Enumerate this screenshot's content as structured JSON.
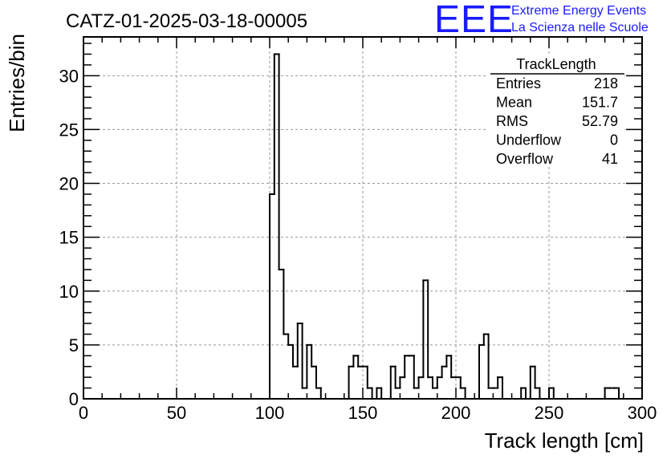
{
  "header": {
    "title": "CATZ-01-2025-03-18-00005",
    "logo_text": "EEE",
    "brand_line1": "Extreme Energy Events",
    "brand_line2": "La Scienza nelle Scuole",
    "brand_color": "#1a1aff"
  },
  "stats_box": {
    "title": "TrackLength",
    "rows": [
      {
        "label": "Entries",
        "value": "218"
      },
      {
        "label": "Mean",
        "value": "151.7"
      },
      {
        "label": "RMS",
        "value": "52.79"
      },
      {
        "label": "Underflow",
        "value": "0"
      },
      {
        "label": "Overflow",
        "value": "41"
      }
    ]
  },
  "chart_data": {
    "type": "bar",
    "style": "step-histogram",
    "title": "CATZ-01-2025-03-18-00005",
    "xlabel": "Track length [cm]",
    "ylabel": "Entries/bin",
    "xlim": [
      0,
      300
    ],
    "ylim": [
      0,
      33.6
    ],
    "grid": true,
    "line_color": "#000000",
    "bin_width": 2.5,
    "x_ticks": [
      0,
      50,
      100,
      150,
      200,
      250,
      300
    ],
    "y_ticks": [
      0,
      5,
      10,
      15,
      20,
      25,
      30
    ],
    "bin_low_edges": [
      100,
      102.5,
      105,
      107.5,
      110,
      112.5,
      115,
      117.5,
      120,
      122.5,
      125,
      127.5,
      130,
      132.5,
      135,
      137.5,
      140,
      142.5,
      145,
      147.5,
      150,
      152.5,
      155,
      157.5,
      160,
      162.5,
      165,
      167.5,
      170,
      172.5,
      175,
      177.5,
      180,
      182.5,
      185,
      187.5,
      190,
      192.5,
      195,
      197.5,
      200,
      202.5,
      205,
      207.5,
      210,
      212.5,
      215,
      217.5,
      220,
      222.5,
      225,
      227.5,
      230,
      232.5,
      235,
      237.5,
      240,
      242.5,
      245,
      247.5,
      250,
      252.5,
      255,
      257.5,
      260,
      262.5,
      265,
      267.5,
      270,
      272.5,
      275,
      277.5,
      280,
      282.5,
      285,
      287.5
    ],
    "counts": [
      19,
      32,
      12,
      6,
      5,
      3,
      7,
      1,
      5,
      3,
      1,
      0,
      0,
      0,
      0,
      0,
      0,
      3,
      4,
      3,
      3,
      1,
      0,
      1,
      0,
      0,
      3,
      1,
      2,
      4,
      4,
      1,
      2,
      11,
      2,
      1,
      2,
      3,
      4,
      2,
      2,
      1,
      0,
      0,
      0,
      5,
      6,
      1,
      1,
      2,
      0,
      0,
      0,
      0,
      1,
      0,
      3,
      1,
      0,
      0,
      1,
      0,
      0,
      0,
      0,
      0,
      0,
      0,
      0,
      0,
      0,
      0,
      1,
      1,
      1,
      0
    ]
  }
}
